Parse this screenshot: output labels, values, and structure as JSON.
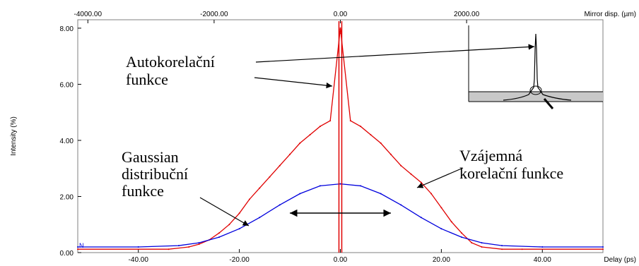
{
  "chart_data": {
    "type": "line",
    "xlabel": "Delay (ps)",
    "x2label": "Mirror disp. (µm)",
    "ylabel": "Intensity (%)",
    "xlim": [
      -52,
      52
    ],
    "ylim": [
      0,
      8.3
    ],
    "x2lim": [
      -4160,
      4160
    ],
    "x_ticks": [
      -40,
      -20,
      0,
      20,
      40
    ],
    "x_tick_labels": [
      "-40.00",
      "-20.00",
      "0.00",
      "20.00",
      "40.00"
    ],
    "x2_ticks": [
      -4000,
      -2000,
      0,
      2000
    ],
    "x2_tick_labels": [
      "-4000.00",
      "-2000.00",
      "0.00",
      "2000.00"
    ],
    "y_ticks": [
      0,
      2,
      4,
      6,
      8
    ],
    "y_tick_labels": [
      "0.00",
      "2.00",
      "4.00",
      "6.00",
      "8.00"
    ],
    "grid": false,
    "series": [
      {
        "color": "#e00000",
        "x": [
          -52,
          -34,
          -30,
          -28,
          -26,
          -24,
          -22,
          -20,
          -18,
          -16,
          -14,
          -12,
          -10,
          -8,
          -6,
          -4,
          -2,
          0,
          2,
          4,
          6,
          8,
          10,
          12,
          14,
          16,
          18,
          20,
          22,
          24,
          26,
          28,
          32,
          36,
          52
        ],
        "y": [
          0.12,
          0.12,
          0.2,
          0.3,
          0.45,
          0.7,
          1.0,
          1.4,
          1.9,
          2.3,
          2.7,
          3.1,
          3.5,
          3.9,
          4.2,
          4.5,
          4.7,
          8.0,
          4.7,
          4.5,
          4.2,
          3.9,
          3.5,
          3.1,
          2.8,
          2.5,
          2.1,
          1.6,
          1.1,
          0.7,
          0.35,
          0.2,
          0.12,
          0.12,
          0.12
        ]
      },
      {
        "color": "#0000dd",
        "x": [
          -52,
          -40,
          -32,
          -28,
          -24,
          -20,
          -16,
          -12,
          -8,
          -4,
          0,
          4,
          8,
          12,
          16,
          20,
          24,
          28,
          32,
          40,
          52
        ],
        "y": [
          0.2,
          0.2,
          0.25,
          0.35,
          0.55,
          0.85,
          1.25,
          1.7,
          2.1,
          2.38,
          2.45,
          2.38,
          2.1,
          1.7,
          1.25,
          0.85,
          0.55,
          0.35,
          0.25,
          0.2,
          0.2
        ]
      }
    ],
    "annotations": [
      {
        "text": [
          "Autokorelační",
          "funkce"
        ]
      },
      {
        "text": [
          "Gaussian",
          "distribuční",
          "funkce"
        ]
      },
      {
        "text": [
          "Vzájemná",
          "korelační funkce"
        ]
      }
    ],
    "markers": {
      "left": "N",
      "top": "B"
    },
    "fwhm_span": [
      -10,
      10
    ]
  }
}
